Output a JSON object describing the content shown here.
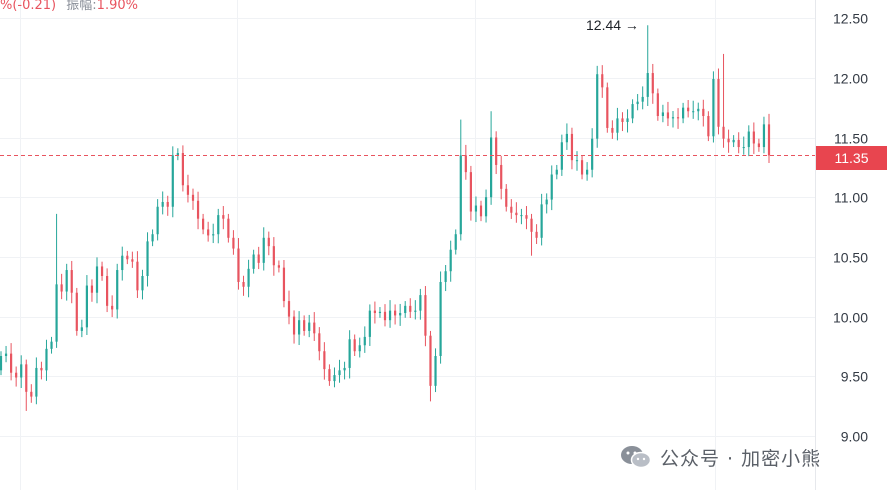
{
  "top_info": {
    "change": "%(-0.21)",
    "amplitude_label": "振幅:",
    "amplitude_value": "1.90%"
  },
  "current_price": {
    "label": "11.35",
    "value": 11.35
  },
  "peak": {
    "label": "12.44 →",
    "value": 12.44
  },
  "watermark": {
    "text": "公众号 · 加密小熊",
    "icon": "wechat-icon"
  },
  "colors": {
    "up": "#26a69a",
    "down": "#e8545f",
    "price_line": "#e8545f",
    "price_tag": "#e8454f",
    "grid": "#f0f2f5"
  },
  "chart_data": {
    "type": "candlestick",
    "y_axis": {
      "side": "right",
      "range": [
        9.0,
        12.6
      ],
      "ticks": [
        9.0,
        9.5,
        10.0,
        10.5,
        11.0,
        11.5,
        12.0,
        12.5
      ],
      "tick_labels": [
        "9.00",
        "9.50",
        "10.00",
        "10.50",
        "11.00",
        "11.50",
        "12.00",
        "12.50"
      ]
    },
    "grid": true,
    "reference_line": 11.35,
    "closes": [
      9.67,
      9.69,
      9.53,
      9.49,
      9.6,
      9.37,
      9.33,
      9.57,
      9.55,
      9.73,
      9.79,
      10.27,
      10.21,
      10.39,
      10.2,
      9.88,
      9.91,
      10.26,
      10.2,
      10.42,
      10.34,
      10.09,
      10.06,
      10.39,
      10.51,
      10.48,
      10.46,
      10.22,
      10.34,
      10.63,
      10.69,
      10.92,
      10.96,
      10.92,
      11.35,
      11.37,
      11.1,
      11.02,
      10.97,
      10.82,
      10.73,
      10.68,
      10.69,
      10.85,
      10.82,
      10.66,
      10.57,
      10.29,
      10.25,
      10.4,
      10.52,
      10.45,
      10.66,
      10.59,
      10.43,
      10.41,
      10.13,
      10.0,
      9.85,
      9.97,
      9.88,
      9.95,
      9.86,
      9.71,
      9.56,
      9.46,
      9.51,
      9.55,
      9.57,
      9.81,
      9.71,
      9.76,
      9.83,
      10.05,
      10.03,
      10.04,
      9.97,
      10.05,
      10.01,
      10.03,
      10.09,
      10.04,
      10.05,
      10.18,
      9.84,
      9.42,
      9.67,
      10.29,
      10.38,
      10.56,
      10.69,
      11.35,
      11.21,
      10.88,
      10.93,
      10.84,
      11.0,
      11.5,
      11.27,
      11.07,
      10.92,
      10.87,
      10.85,
      10.85,
      10.82,
      10.71,
      10.66,
      10.94,
      10.98,
      11.19,
      11.23,
      11.46,
      11.53,
      11.31,
      11.31,
      11.19,
      11.23,
      11.49,
      12.03,
      11.92,
      11.58,
      11.54,
      11.66,
      11.63,
      11.66,
      11.78,
      11.8,
      11.84,
      12.04,
      11.87,
      11.68,
      11.71,
      11.66,
      11.67,
      11.66,
      11.75,
      11.72,
      11.72,
      11.74,
      11.68,
      11.51,
      11.99,
      11.59,
      11.49,
      11.46,
      11.48,
      11.42,
      11.42,
      11.55,
      11.45,
      11.42,
      11.61,
      11.35
    ]
  }
}
